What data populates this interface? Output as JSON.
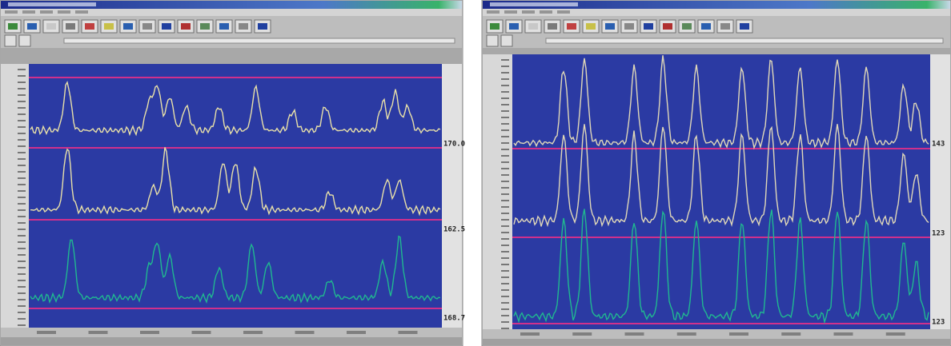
{
  "windows": [
    {
      "right_labels": [
        "170.0",
        "162.5",
        "168.7"
      ]
    },
    {
      "right_labels": [
        "143",
        "123",
        "123"
      ]
    }
  ]
}
